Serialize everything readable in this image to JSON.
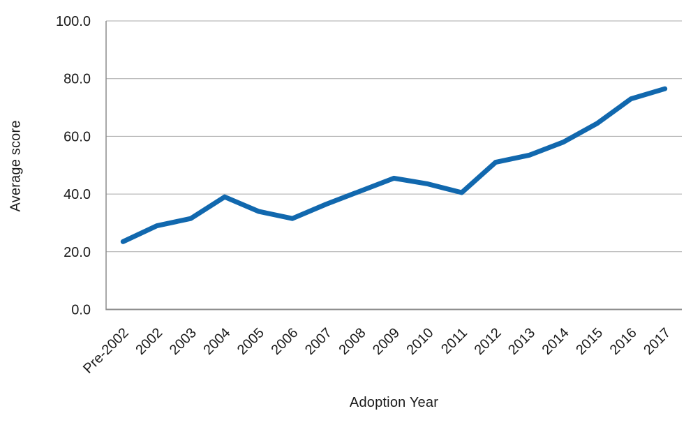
{
  "chart_data": {
    "type": "line",
    "title": "",
    "xlabel": "Adoption Year",
    "ylabel": "Average score",
    "categories": [
      "Pre-2002",
      "2002",
      "2003",
      "2004",
      "2005",
      "2006",
      "2007",
      "2008",
      "2009",
      "2010",
      "2011",
      "2012",
      "2013",
      "2014",
      "2015",
      "2016",
      "2017"
    ],
    "series": [
      {
        "name": "Average score",
        "values": [
          23.5,
          29,
          31.5,
          39,
          34,
          31.5,
          36.5,
          41,
          45.5,
          43.5,
          40.5,
          51,
          53.5,
          58,
          64.5,
          73,
          76.5
        ]
      }
    ],
    "ylim": [
      0,
      100
    ],
    "ytick_labels": [
      "0.0",
      "20.0",
      "40.0",
      "60.0",
      "80.0",
      "100.0"
    ],
    "ytick_values": [
      0,
      20,
      40,
      60,
      80,
      100
    ],
    "grid": true,
    "legend_position": "none"
  },
  "colors": {
    "series_line": "#1168ae",
    "gridline": "#a9a9a9",
    "axis_border": "#8c8c8c",
    "tick_text": "#1a1a1a",
    "background": "#ffffff"
  }
}
